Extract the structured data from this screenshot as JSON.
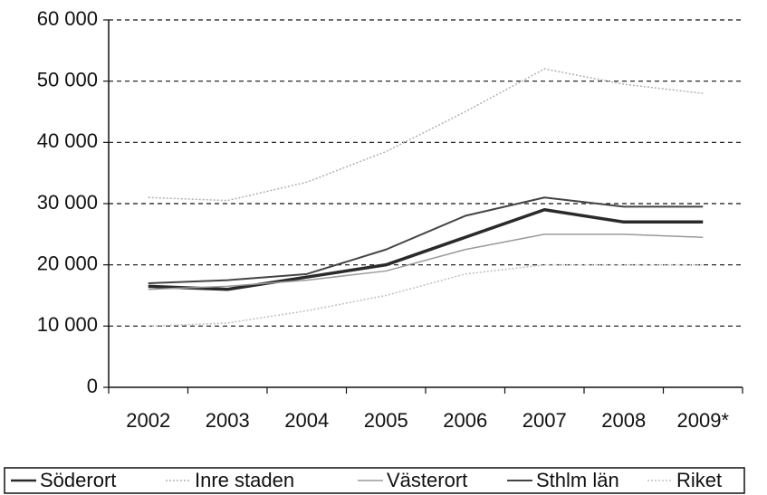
{
  "chart_data": {
    "type": "line",
    "categories": [
      "2002",
      "2003",
      "2004",
      "2005",
      "2006",
      "2007",
      "2008",
      "2009*"
    ],
    "series": [
      {
        "name": "Söderort",
        "color": "#2a2a2a",
        "values": [
          16500,
          16000,
          18000,
          20000,
          24500,
          29000,
          27000,
          27000
        ]
      },
      {
        "name": "Inre staden",
        "color": "#b0b0b0",
        "values": [
          31000,
          30500,
          33500,
          38500,
          45000,
          52000,
          49500,
          48000
        ]
      },
      {
        "name": "Västerort",
        "color": "#9a9a9a",
        "values": [
          16000,
          16500,
          17500,
          19000,
          22500,
          25000,
          25000,
          24500
        ]
      },
      {
        "name": "Sthlm län",
        "color": "#444444",
        "values": [
          17000,
          17500,
          18500,
          22500,
          28000,
          31000,
          29500,
          29500
        ]
      },
      {
        "name": "Riket",
        "color": "#c0c0c0",
        "values": [
          10000,
          10500,
          12500,
          15000,
          18500,
          20000,
          20000,
          20000
        ]
      }
    ],
    "ylim": [
      0,
      60000
    ],
    "yticks": [
      0,
      {
        "value": 10000,
        "label": "10 000"
      },
      {
        "value": 20000,
        "label": "20 000"
      },
      {
        "value": 30000,
        "label": "30 000"
      },
      {
        "value": 40000,
        "label": "40 000"
      },
      {
        "value": 50000,
        "label": "50 000"
      },
      {
        "value": 60000,
        "label": "60 000"
      }
    ],
    "grid": true,
    "legend": "bottom"
  }
}
